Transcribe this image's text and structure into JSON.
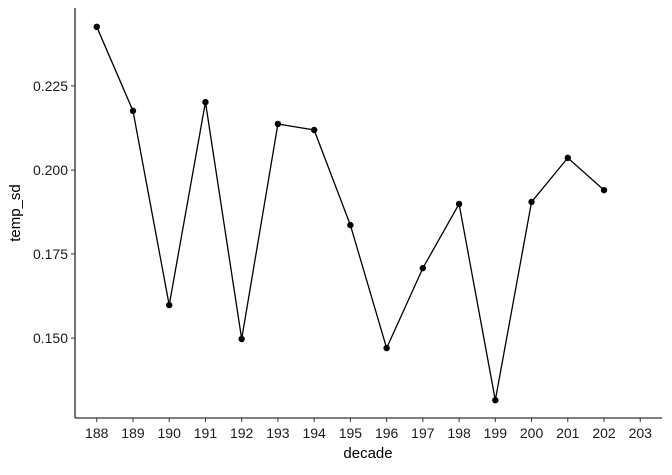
{
  "chart_data": {
    "type": "line",
    "x_label": "decade",
    "y_label": "temp_sd",
    "categories": [
      "188",
      "189",
      "190",
      "191",
      "192",
      "193",
      "194",
      "195",
      "196",
      "197",
      "198",
      "199",
      "200",
      "201",
      "202",
      "203"
    ],
    "values": [
      0.2426,
      0.2176,
      0.1598,
      0.2202,
      0.1497,
      0.2137,
      0.2119,
      0.1836,
      0.147,
      0.1708,
      0.1899,
      0.1315,
      0.1905,
      0.2036,
      0.194,
      null
    ],
    "color": "#000000",
    "ylim": [
      0.1262,
      0.2482
    ],
    "yticks": [
      {
        "value": 0.15,
        "label": "0.150"
      },
      0.175,
      {
        "value": 0.2,
        "label": "0.200"
      },
      0.225
    ],
    "grid": false
  }
}
